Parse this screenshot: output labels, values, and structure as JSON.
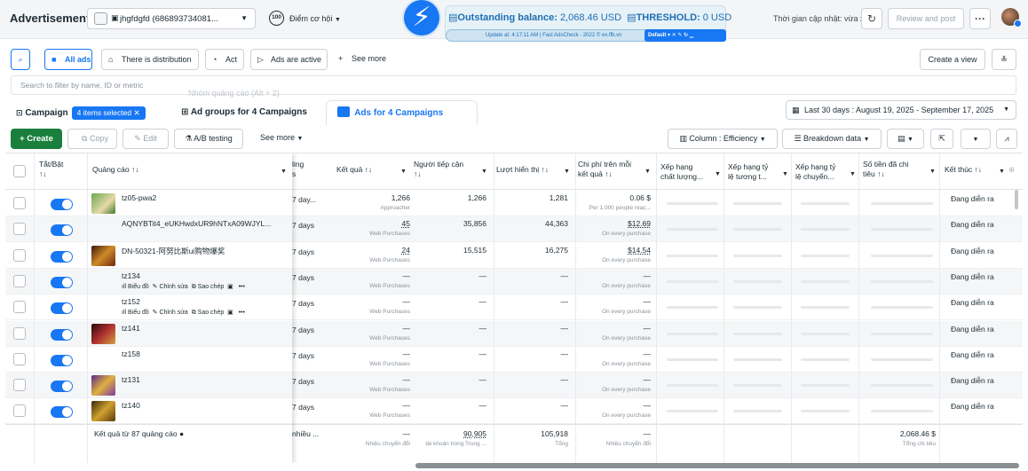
{
  "header": {
    "title": "Advertisement",
    "account": "jhgfdgfd (686893734081...",
    "score_value": "100",
    "score_label": "Điểm cơ hội",
    "balance_label": "Outstanding balance:",
    "balance_value": "2,068.46 USD",
    "threshold_label": "THRESHOLD:",
    "threshold_value": "0 USD",
    "updated_info": "Update at: 4:17:11 AM | Fast AdsCheck - 2022 © ex.ffb.vn",
    "extension_mode": "Default",
    "last_updated": "Thời gian cập nhật: vừa xong",
    "review_publish": "Review and post",
    "more": "···"
  },
  "filters": {
    "all_ads": "All ads",
    "distribution": "There is distribution",
    "act": "Act",
    "ads_active": "Ads are active",
    "see_more": "See more",
    "create_view": "Create a view",
    "search_placeholder": "Search to filter by name, ID or metric",
    "ghost_hint": "Nhóm quảng cáo (Alt + 2)"
  },
  "tabs": {
    "campaign": "Campaign",
    "selected": "4 items selected",
    "adgroups": "Ad groups for 4 Campaigns",
    "ads": "Ads for 4 Campaigns",
    "date_range": "Last 30 days : August 19, 2025 - September 17, 2025"
  },
  "toolbar": {
    "create": "+ Create",
    "copy": "Copy",
    "edit": "Edit",
    "ab": "A/B testing",
    "see_more": "See more",
    "columns": "Column : Efficiency",
    "breakdown": "Breakdown data"
  },
  "columns": {
    "toggle": "Tắt/Bật",
    "sort": "↑↓",
    "ad": "Quảng cáo ↑↓",
    "schedule_1": "ling",
    "schedule_2": "s",
    "results": "Kết quả ↑↓",
    "reach_1": "Người tiếp cận",
    "reach_2": "↑↓",
    "impressions": "Lượt hiển thị ↑↓",
    "cpr_1": "Chi phí trên mỗi",
    "cpr_2": "kết quả ↑↓",
    "quality_1": "Xếp hạng",
    "quality_2": "chất lượng...",
    "engage_1": "Xếp hạng tỷ",
    "engage_2": "lệ tương t...",
    "conv_1": "Xếp hạng tỷ",
    "conv_2": "lệ chuyển...",
    "spent_1": "Số tiền đã chi",
    "spent_2": "tiêu ↑↓",
    "end": "Kết thúc ↑↓"
  },
  "rows": [
    {
      "name": "tz05-pwa2",
      "sched": "7 day...",
      "result": "1,266",
      "result_sub": "Approacher",
      "reach": "1,266",
      "impr": "1,281",
      "cpr": "0.06 $",
      "cpr_sub": "Per 1,000 people reac...",
      "status": "Đang diễn ra"
    },
    {
      "name": "AQNYBTit4_eUKHwdxUR9hNTxA09WJYL...",
      "sched": "7 days",
      "result": "45",
      "result_sub": "Web Purchases",
      "reach": "35,856",
      "impr": "44,363",
      "cpr": "$12.69",
      "cpr_sub": "On every purchase",
      "status": "Đang diễn ra"
    },
    {
      "name": "DN-50321-阿努比斯ui购物爆奖",
      "sched": "7 days",
      "result": "24",
      "result_sub": "Web Purchases",
      "reach": "15,515",
      "impr": "16,275",
      "cpr": "$14.54",
      "cpr_sub": "On every purchase",
      "status": "Đang diễn ra"
    },
    {
      "name": "tz134",
      "sched": "7 days",
      "result": "—",
      "result_sub": "Web Purchases",
      "reach": "—",
      "impr": "—",
      "cpr": "—",
      "cpr_sub": "On every purchase",
      "status": "Đang diễn ra"
    },
    {
      "name": "tz152",
      "sched": "7 days",
      "result": "—",
      "result_sub": "Web Purchases",
      "reach": "—",
      "impr": "—",
      "cpr": "—",
      "cpr_sub": "On every purchase",
      "status": "Đang diễn ra"
    },
    {
      "name": "tz141",
      "sched": "7 days",
      "result": "—",
      "result_sub": "Web Purchases",
      "reach": "—",
      "impr": "—",
      "cpr": "—",
      "cpr_sub": "On every purchase",
      "status": "Đang diễn ra"
    },
    {
      "name": "tz158",
      "sched": "7 days",
      "result": "—",
      "result_sub": "Web Purchases",
      "reach": "—",
      "impr": "—",
      "cpr": "—",
      "cpr_sub": "On every purchase",
      "status": "Đang diễn ra"
    },
    {
      "name": "tz131",
      "sched": "7 days",
      "result": "—",
      "result_sub": "Web Purchases",
      "reach": "—",
      "impr": "—",
      "cpr": "—",
      "cpr_sub": "On every purchase",
      "status": "Đang diễn ra"
    },
    {
      "name": "tz140",
      "sched": "7 days",
      "result": "—",
      "result_sub": "Web Purchases",
      "reach": "—",
      "impr": "—",
      "cpr": "—",
      "cpr_sub": "On every purchase",
      "status": "Đang diễn ra"
    }
  ],
  "row_actions": {
    "chart": "Biểu đồ",
    "edit": "Chỉnh sửa",
    "copy": "Sao chép",
    "more": "•••"
  },
  "totals": {
    "label": "Kết quả từ 87 quảng cáo",
    "sched": "nhiều ...",
    "result": "—",
    "result_sub": "Nhiều chuyển đổi",
    "reach": "90,905",
    "reach_sub": "tài khoản trong Trung ...",
    "impr": "105,918",
    "impr_sub": "Tổng",
    "cpr": "—",
    "cpr_sub": "Nhiều chuyển đổi",
    "spent": "2,068.46 $",
    "spent_sub": "Tổng chi tiêu"
  },
  "colors": {
    "accent": "#1877f2",
    "create": "#1a7f3c"
  }
}
